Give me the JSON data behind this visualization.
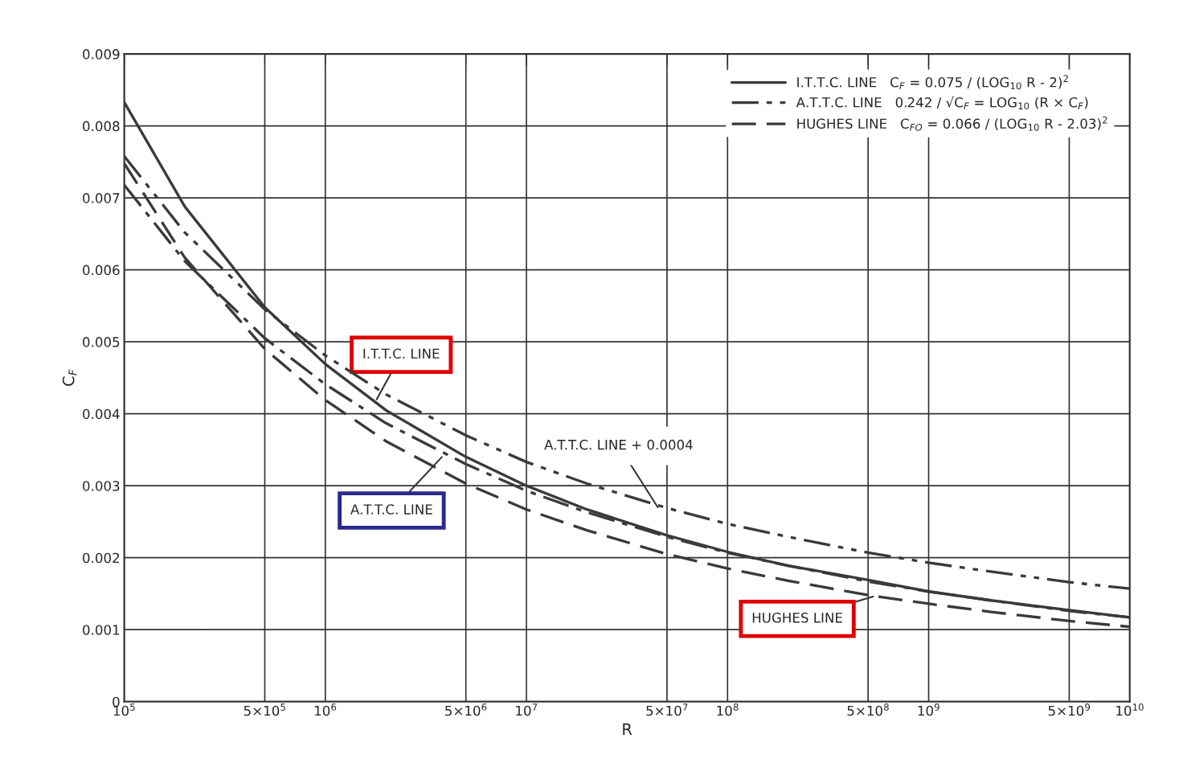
{
  "chart_data": {
    "type": "line",
    "xlabel": "R",
    "ylabel": "C$_{F}$",
    "x": [
      100000,
      200000,
      500000,
      1000000,
      2000000,
      5000000,
      10000000,
      20000000,
      50000000,
      100000000,
      200000000,
      500000000,
      1000000000,
      2000000000,
      5000000000,
      10000000000
    ],
    "series": [
      {
        "name": "I.T.T.C. LINE   C$_{F}$ = 0.075 / (LOG$_{10}$ R - 2)$^{2}$",
        "color": "#3a3a3a",
        "line_style": "solid",
        "values": [
          0.00833,
          0.00688,
          0.00548,
          0.00469,
          0.00405,
          0.0034,
          0.003,
          0.00267,
          0.00231,
          0.00208,
          0.00189,
          0.00169,
          0.00153,
          0.00141,
          0.00127,
          0.00117
        ]
      },
      {
        "name": "A.T.T.C. LINE   0.242 / √C$_{F}$ = LOG$_{10}$ (R × C$_{F}$)",
        "color": "#3a3a3a",
        "line_style": "dashdot",
        "values": [
          0.00718,
          0.00612,
          0.00505,
          0.00441,
          0.00387,
          0.0033,
          0.00293,
          0.00263,
          0.00229,
          0.00207,
          0.00189,
          0.00167,
          0.00153,
          0.00141,
          0.00126,
          0.00117
        ]
      },
      {
        "name": "HUGHES LINE   C$_{FO}$ = 0.066 / (LOG$_{10}$ R - 2.03)$^{2}$",
        "color": "#3a3a3a",
        "line_style": "dashed",
        "values": [
          0.00748,
          0.00617,
          0.0049,
          0.00419,
          0.00362,
          0.00303,
          0.00267,
          0.00238,
          0.00205,
          0.00185,
          0.00168,
          0.00148,
          0.00136,
          0.00125,
          0.00112,
          0.00104
        ]
      },
      {
        "color": "#3a3a3a",
        "line_style": "dashdotdot",
        "values": [
          0.00758,
          0.00652,
          0.00545,
          0.00481,
          0.00427,
          0.0037,
          0.00333,
          0.00303,
          0.00269,
          0.00247,
          0.00229,
          0.00207,
          0.00193,
          0.00181,
          0.00166,
          0.00157
        ]
      }
    ],
    "log": "x",
    "xlim": [
      100000,
      10000000000
    ],
    "ylim": [
      0,
      0.009
    ],
    "xticks": [
      {
        "value": 100000,
        "label": "10$^{5}$"
      },
      {
        "value": 500000,
        "label": "5×10$^{5}$"
      },
      {
        "value": 1000000,
        "label": "10$^{6}$"
      },
      {
        "value": 5000000,
        "label": "5×10$^{6}$"
      },
      {
        "value": 10000000,
        "label": "10$^{7}$"
      },
      {
        "value": 50000000,
        "label": "5×10$^{7}$"
      },
      {
        "value": 100000000,
        "label": "10$^{8}$"
      },
      {
        "value": 500000000,
        "label": "5×10$^{8}$"
      },
      {
        "value": 1000000000,
        "label": "10$^{9}$"
      },
      {
        "value": 5000000000,
        "label": "5×10$^{9}$"
      },
      {
        "value": 10000000000,
        "label": "10$^{10}$"
      }
    ],
    "yticks": [
      0,
      0.001,
      0.002,
      0.003,
      0.004,
      0.005,
      0.006,
      0.007,
      0.008,
      0.009
    ],
    "grid": true,
    "legend": "top right",
    "annotations": [
      {
        "text": "I.T.T.C. LINE",
        "x": 1800000,
        "y": 0.0042
      },
      {
        "text": "A.T.T.C. LINE",
        "x": 3800000,
        "y": 0.0034
      },
      {
        "text": "A.T.T.C. LINE + 0.0004",
        "x": 45000000,
        "y": 0.0027
      },
      {
        "text": "HUGHES LINE",
        "x": 530000000,
        "y": 0.00146
      }
    ]
  }
}
